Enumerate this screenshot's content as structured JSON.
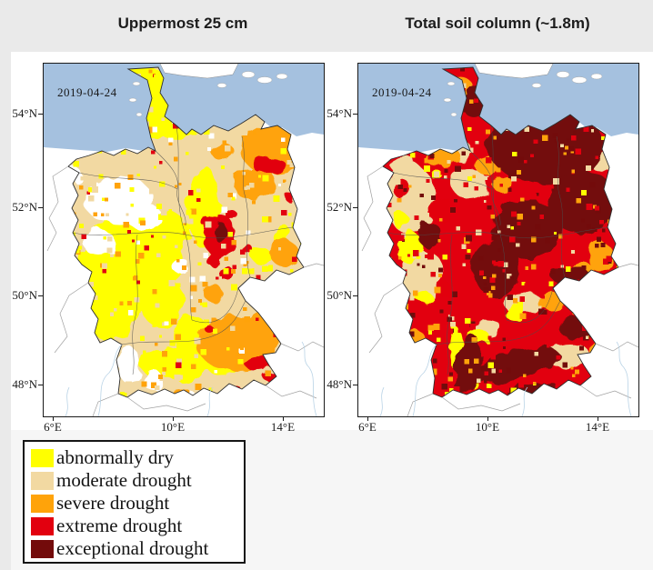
{
  "page": {
    "background": "#eaeaea",
    "figure_background": "#ffffff"
  },
  "panels": [
    {
      "title": "Uppermost 25 cm",
      "date_label": "2019-04-24"
    },
    {
      "title": "Total soil column (~1.8m)",
      "date_label": "2019-04-24"
    }
  ],
  "axes": {
    "lat_labels": [
      "54°N",
      "52°N",
      "50°N",
      "48°N"
    ],
    "lon_labels": [
      "6°E",
      "10°E",
      "14°E"
    ]
  },
  "legend": {
    "items": [
      {
        "label": "abnormally dry",
        "key": "yellow",
        "color": "#FFFF00"
      },
      {
        "label": "moderate drought",
        "key": "moderate",
        "color": "#F2D9A2"
      },
      {
        "label": "severe drought",
        "key": "severe",
        "color": "#FFA30A"
      },
      {
        "label": "extreme drought",
        "key": "extreme",
        "color": "#E2000F"
      },
      {
        "label": "exceptional drought",
        "key": "exceptional",
        "color": "#730B0B"
      }
    ]
  },
  "chart_data": {
    "type": "heatmap",
    "subject": "Soil-moisture drought classification map of Germany (drought monitor)",
    "date": "2019-04-24",
    "region": "Germany",
    "lat_ticks": [
      "54°N",
      "52°N",
      "50°N",
      "48°N"
    ],
    "lon_ticks": [
      "6°E",
      "10°E",
      "14°E"
    ],
    "categories": [
      "abnormally dry",
      "moderate drought",
      "severe drought",
      "extreme drought",
      "exceptional drought"
    ],
    "colors": {
      "yellow": "#FFFF00",
      "moderate": "#F2D9A2",
      "severe": "#FFA30A",
      "extreme": "#E2000F",
      "exceptional": "#730B0B",
      "none": "#FFFFFF",
      "sea": "#A5C1DF"
    },
    "panels": [
      {
        "name": "uppermost_25cm",
        "title": "Uppermost 25 cm",
        "base": "moderate",
        "summary": "Mostly moderate drought; abnormally dry in the north-west and west; severe drought in the north-east and south-east Bavaria; extreme/exceptional core around Saxony-Anhalt; drought-free patches in Lower Saxony and the south-west.",
        "speckle": {
          "seed": 11,
          "count": 520,
          "min": 3,
          "max": 7,
          "weights": {
            "yellow": 0.32,
            "moderate": 0.3,
            "severe": 0.2,
            "extreme": 0.1,
            "none": 0.07,
            "exceptional": 0.01
          }
        },
        "regions": [
          [
            "yellow",
            112,
            42,
            34,
            40
          ],
          [
            "yellow",
            148,
            66,
            24,
            18
          ],
          [
            "yellow",
            96,
            220,
            56,
            52
          ],
          [
            "yellow",
            132,
            186,
            28,
            24
          ],
          [
            "yellow",
            72,
            270,
            30,
            34
          ],
          [
            "yellow",
            130,
            262,
            24,
            28
          ],
          [
            "yellow",
            162,
            300,
            20,
            24
          ],
          [
            "yellow",
            152,
            330,
            28,
            20
          ],
          [
            "yellow",
            176,
            158,
            18,
            46
          ],
          [
            "yellow",
            196,
            332,
            16,
            12
          ],
          [
            "yellow",
            262,
            188,
            9,
            12
          ],
          [
            "yellow",
            240,
            212,
            11,
            9
          ],
          [
            "yellow",
            124,
            330,
            18,
            14
          ],
          [
            "none",
            82,
            150,
            38,
            26
          ],
          [
            "none",
            60,
            196,
            18,
            14
          ],
          [
            "none",
            110,
            168,
            20,
            14
          ],
          [
            "none",
            94,
            332,
            12,
            20
          ],
          [
            "none",
            120,
            348,
            10,
            12
          ],
          [
            "none",
            174,
            370,
            20,
            7
          ],
          [
            "none",
            32,
            122,
            10,
            8
          ],
          [
            "none",
            150,
            222,
            10,
            8
          ],
          [
            "severe",
            254,
            94,
            38,
            28
          ],
          [
            "severe",
            232,
            132,
            24,
            18
          ],
          [
            "severe",
            264,
            208,
            16,
            14
          ],
          [
            "severe",
            214,
            308,
            46,
            30
          ],
          [
            "severe",
            244,
            286,
            18,
            14
          ],
          [
            "severe",
            186,
            252,
            11,
            9
          ],
          [
            "severe",
            196,
            96,
            13,
            9
          ],
          [
            "severe",
            152,
            366,
            13,
            7
          ],
          [
            "severe",
            262,
            246,
            10,
            8
          ],
          [
            "extreme",
            194,
            190,
            18,
            24
          ],
          [
            "extreme",
            248,
            112,
            18,
            10
          ],
          [
            "extreme",
            272,
            148,
            6,
            5
          ],
          [
            "extreme",
            288,
            208,
            6,
            8
          ],
          [
            "extreme",
            236,
            330,
            15,
            8
          ],
          [
            "extreme",
            252,
            344,
            11,
            7
          ],
          [
            "extreme",
            208,
            360,
            11,
            5
          ],
          [
            "extreme",
            284,
            242,
            7,
            5
          ],
          [
            "extreme",
            182,
            292,
            5,
            4
          ],
          [
            "extreme",
            185,
            215,
            6,
            8
          ],
          [
            "extreme",
            200,
            230,
            7,
            9
          ],
          [
            "extreme",
            206,
            166,
            6,
            6
          ],
          [
            "extreme",
            226,
            206,
            6,
            5
          ],
          [
            "extreme",
            178,
            174,
            5,
            5
          ],
          [
            "exceptional",
            195,
            186,
            8,
            11
          ]
        ]
      },
      {
        "name": "total_soil_column",
        "title": "Total soil column (~1.8m)",
        "base": "extreme",
        "summary": "Extreme to exceptional drought across the north, centre and east; moderate drought with abnormally dry patches in the west; mixed severe/exceptional bands in the south (Black Forest, Swabian Alb, Alpine rim).",
        "speckle": {
          "seed": 23,
          "count": 560,
          "min": 3,
          "max": 7,
          "weights": {
            "extreme": 0.3,
            "exceptional": 0.26,
            "severe": 0.22,
            "moderate": 0.13,
            "yellow": 0.09
          }
        },
        "regions": [
          [
            "moderate",
            56,
            148,
            28,
            38
          ],
          [
            "moderate",
            70,
            232,
            24,
            28
          ],
          [
            "moderate",
            122,
            132,
            20,
            16
          ],
          [
            "moderate",
            50,
            112,
            14,
            10
          ],
          [
            "moderate",
            270,
            108,
            16,
            11
          ],
          [
            "moderate",
            288,
            182,
            10,
            14
          ],
          [
            "moderate",
            232,
            322,
            24,
            14
          ],
          [
            "moderate",
            258,
            262,
            16,
            20
          ],
          [
            "moderate",
            182,
            264,
            22,
            12
          ],
          [
            "moderate",
            142,
            292,
            16,
            10
          ],
          [
            "moderate",
            108,
            96,
            18,
            12
          ],
          [
            "yellow",
            56,
            202,
            14,
            18
          ],
          [
            "yellow",
            46,
            172,
            9,
            9
          ],
          [
            "yellow",
            108,
            314,
            7,
            24
          ],
          [
            "yellow",
            132,
            300,
            11,
            9
          ],
          [
            "yellow",
            172,
            274,
            12,
            8
          ],
          [
            "yellow",
            293,
            222,
            9,
            14
          ],
          [
            "yellow",
            72,
            257,
            9,
            7
          ],
          [
            "yellow",
            126,
            347,
            7,
            9
          ],
          [
            "yellow",
            86,
            122,
            7,
            5
          ],
          [
            "severe",
            112,
            32,
            16,
            18
          ],
          [
            "severe",
            92,
            102,
            20,
            12
          ],
          [
            "severe",
            142,
            112,
            14,
            10
          ],
          [
            "severe",
            266,
            212,
            14,
            16
          ],
          [
            "severe",
            212,
            262,
            16,
            10
          ],
          [
            "severe",
            276,
            322,
            20,
            16
          ],
          [
            "severe",
            158,
            132,
            11,
            9
          ],
          [
            "severe",
            62,
            302,
            11,
            9
          ],
          [
            "severe",
            246,
            226,
            12,
            8
          ],
          [
            "extreme",
            92,
            160,
            12,
            14
          ],
          [
            "extreme",
            46,
            136,
            10,
            10
          ],
          [
            "extreme",
            98,
            250,
            10,
            9
          ],
          [
            "exceptional",
            205,
            88,
            64,
            44
          ],
          [
            "exceptional",
            246,
            152,
            40,
            34
          ],
          [
            "exceptional",
            186,
            182,
            38,
            32
          ],
          [
            "exceptional",
            152,
            226,
            26,
            30
          ],
          [
            "exceptional",
            130,
            44,
            14,
            18
          ],
          [
            "exceptional",
            78,
            188,
            13,
            14
          ],
          [
            "exceptional",
            172,
            332,
            50,
            16,
            -15
          ],
          [
            "exceptional",
            120,
            332,
            13,
            34,
            12
          ],
          [
            "exceptional",
            206,
            362,
            42,
            10
          ],
          [
            "exceptional",
            240,
            290,
            20,
            13
          ],
          [
            "exceptional",
            232,
            232,
            22,
            9
          ],
          [
            "exceptional",
            272,
            252,
            14,
            18
          ]
        ]
      }
    ]
  }
}
